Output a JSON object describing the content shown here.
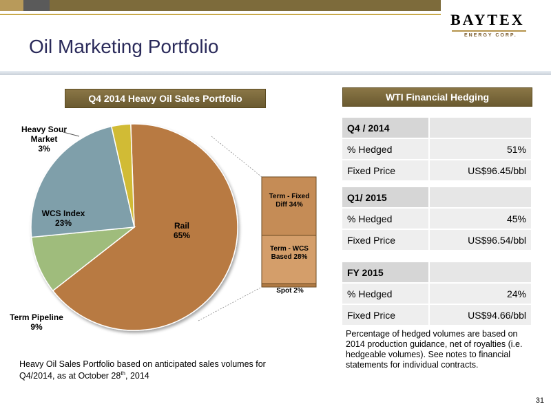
{
  "brand": {
    "name": "BAYTEX",
    "tagline": "ENERGY CORP."
  },
  "slide": {
    "title": "Oil Marketing Portfolio",
    "page_number": "31"
  },
  "left_panel": {
    "header": "Q4 2014 Heavy Oil Sales Portfolio",
    "labels": {
      "heavy_sour_name": "Heavy Sour Market",
      "heavy_sour_pct": "3%",
      "wcs_name": "WCS Index",
      "wcs_pct": "23%",
      "rail_name": "Rail",
      "rail_pct": "65%",
      "term_pipeline_name": "Term Pipeline",
      "term_pipeline_pct": "9%"
    },
    "rail_breakdown": {
      "term_fixed_diff": "Term - Fixed Diff  34%",
      "term_wcs": "Term - WCS Based  28%",
      "spot": "Spot  2%"
    },
    "note_prefix": "Heavy Oil Sales Portfolio based on anticipated sales volumes for Q4/2014, as at October 28",
    "note_sup": "th",
    "note_suffix": ", 2014"
  },
  "right_panel": {
    "header": "WTI Financial Hedging",
    "tables": [
      {
        "period": "Q4 / 2014",
        "hedged_label": "% Hedged",
        "hedged_value": "51%",
        "price_label": "Fixed Price",
        "price_value": "US$96.45/bbl"
      },
      {
        "period": "Q1/ 2015",
        "hedged_label": "% Hedged",
        "hedged_value": "45%",
        "price_label": "Fixed Price",
        "price_value": "US$96.54/bbl"
      },
      {
        "period": "FY 2015",
        "hedged_label": "% Hedged",
        "hedged_value": "24%",
        "price_label": "Fixed Price",
        "price_value": "US$94.66/bbl"
      }
    ],
    "note": "Percentage of hedged volumes are based on 2014 production guidance, net of royalties (i.e. hedgeable volumes). See notes to financial statements for individual contracts."
  },
  "chart_data": {
    "type": "pie",
    "title": "Q4 2014 Heavy Oil Sales Portfolio",
    "slices": [
      {
        "label": "Rail",
        "value": 65,
        "color": "#b87a42"
      },
      {
        "label": "Term Pipeline",
        "value": 9,
        "color": "#9fbc7c"
      },
      {
        "label": "WCS Index",
        "value": 23,
        "color": "#7f9faa"
      },
      {
        "label": "Heavy Sour Market",
        "value": 3,
        "color": "#d1bb34"
      }
    ],
    "breakdown": {
      "of": "Rail",
      "segments": [
        {
          "label": "Term - Fixed Diff",
          "value": 34,
          "color": "#c58c56"
        },
        {
          "label": "Term - WCS Based",
          "value": 28,
          "color": "#d49e6a"
        },
        {
          "label": "Spot",
          "value": 2,
          "color": "#b07a44"
        }
      ]
    }
  }
}
